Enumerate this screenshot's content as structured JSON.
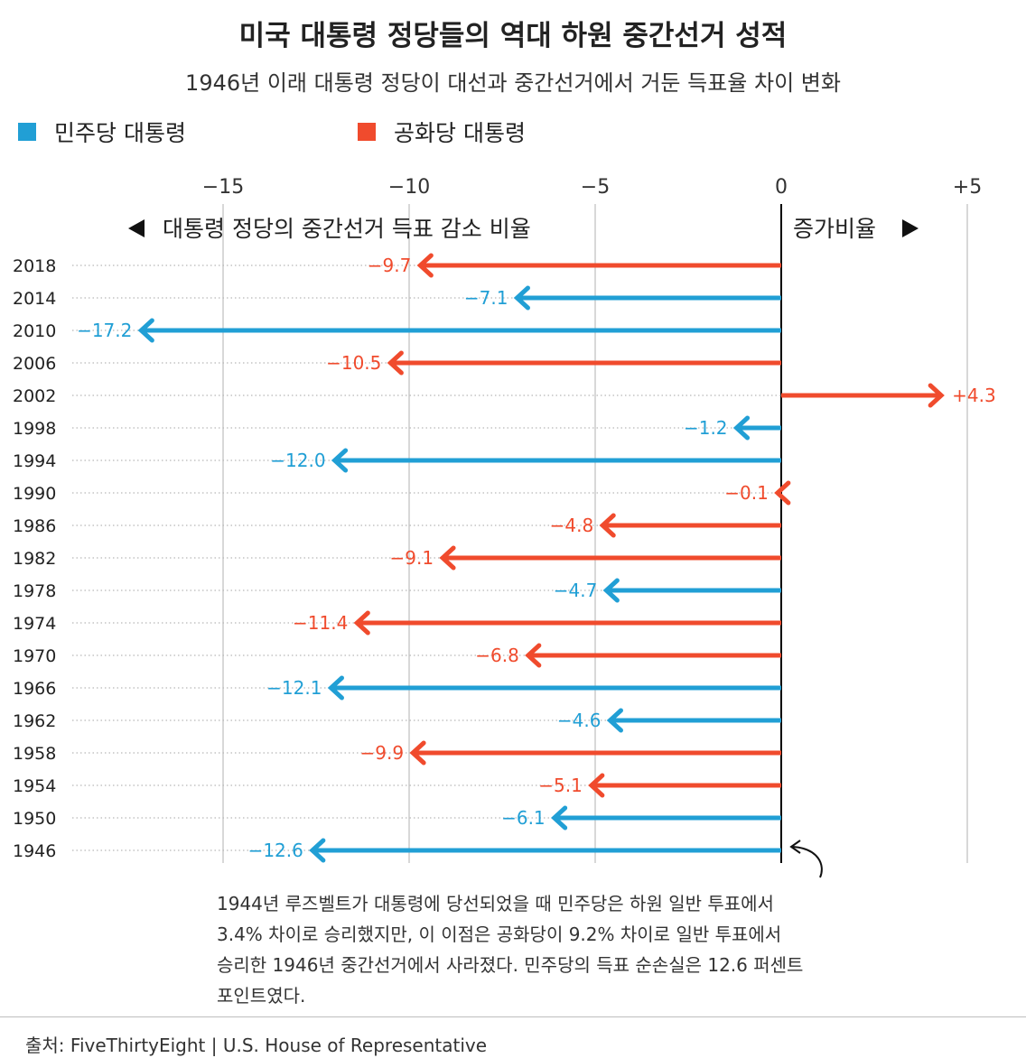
{
  "title": "미국 대통령 정당들의 역대 하원 중간선거 성적",
  "subtitle": "1946년 이래 대통령 정당이 대선과 중간선거에서 거둔 득표율 차이 변화",
  "legend": {
    "dem_label": "민주당 대통령",
    "rep_label": "공화당 대통령"
  },
  "colors": {
    "dem": "#219fd5",
    "rep": "#f04b2d",
    "grid": "#cccccc",
    "axis": "#000000"
  },
  "annotations": {
    "decrease_label": "대통령 정당의 중간선거 득표 감소 비율",
    "increase_label": "증가비율",
    "note_line1": "1944년 루즈벨트가 대통령에 당선되었을 때 민주당은 하원 일반 투표에서",
    "note_line2": "3.4% 차이로 승리했지만, 이 이점은 공화당이 9.2% 차이로 일반 투표에서",
    "note_line3": "승리한 1946년 중간선거에서 사라졌다. 민주당의 득표 순손실은 12.6 퍼센트",
    "note_line4": "포인트였다."
  },
  "source": "출처: FiveThirtyEight | U.S. House of Representative",
  "chart_data": {
    "type": "bar",
    "orientation": "horizontal",
    "title": "미국 대통령 정당들의 역대 하원 중간선거 성적",
    "xlim": [
      -18,
      5
    ],
    "xticks": [
      -15,
      -10,
      -5,
      0,
      5
    ],
    "xtick_labels": [
      "−15",
      "−10",
      "−5",
      "0",
      "+5"
    ],
    "categories": [
      "2018",
      "2014",
      "2010",
      "2006",
      "2002",
      "1998",
      "1994",
      "1990",
      "1986",
      "1982",
      "1978",
      "1974",
      "1970",
      "1966",
      "1962",
      "1958",
      "1954",
      "1950",
      "1946"
    ],
    "values": [
      -9.7,
      -7.1,
      -17.2,
      -10.5,
      4.3,
      -1.2,
      -12.0,
      -0.1,
      -4.8,
      -9.1,
      -4.7,
      -11.4,
      -6.8,
      -12.1,
      -4.6,
      -9.9,
      -5.1,
      -6.1,
      -12.6
    ],
    "value_labels": [
      "−9.7",
      "−7.1",
      "−17.2",
      "−10.5",
      "+4.3",
      "−1.2",
      "−12.0",
      "−0.1",
      "−4.8",
      "−9.1",
      "−4.7",
      "−11.4",
      "−6.8",
      "−12.1",
      "−4.6",
      "−9.9",
      "−5.1",
      "−6.1",
      "−12.6"
    ],
    "party": [
      "R",
      "D",
      "D",
      "R",
      "R",
      "D",
      "D",
      "R",
      "R",
      "R",
      "D",
      "R",
      "R",
      "D",
      "D",
      "R",
      "R",
      "D",
      "D"
    ]
  }
}
